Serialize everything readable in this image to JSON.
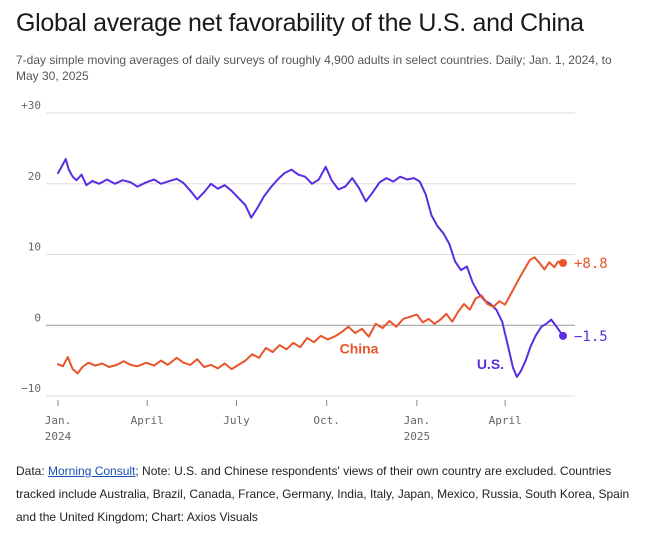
{
  "title": "Global average net favorability of the U.S. and China",
  "subtitle": "7-day simple moving averages of daily surveys of roughly 4,900 adults in select countries. Daily; Jan. 1, 2024, to May 30, 2025",
  "footer": {
    "prefix": "Data: ",
    "link_text": "Morning Consult",
    "rest": "; Note: U.S. and Chinese respondents' views of their own country are excluded. Countries tracked include Australia, Brazil, Canada, France, Germany, India, Italy, Japan, Mexico, Russia, South Korea, Spain and the United Kingdom; Chart: Axios Visuals"
  },
  "colors": {
    "us": "#5a2ee0",
    "china": "#e8552a",
    "grid": "#dddddd",
    "zero": "#999999"
  },
  "chart_data": {
    "type": "line",
    "title": "Global average net favorability of the U.S. and China",
    "xlim": [
      "2024-01-01",
      "2025-05-30"
    ],
    "ylim": [
      -10,
      30
    ],
    "yticks": [
      {
        "value": 30,
        "label": "+30"
      },
      {
        "value": 20,
        "label": "20"
      },
      {
        "value": 10,
        "label": "10"
      },
      {
        "value": 0,
        "label": "0"
      },
      {
        "value": -10,
        "label": "−10"
      }
    ],
    "xticks": [
      {
        "date": "2024-01-01",
        "label": "Jan.",
        "sublabel": "2024"
      },
      {
        "date": "2024-04-01",
        "label": "April",
        "sublabel": ""
      },
      {
        "date": "2024-07-01",
        "label": "July",
        "sublabel": ""
      },
      {
        "date": "2024-10-01",
        "label": "Oct.",
        "sublabel": ""
      },
      {
        "date": "2025-01-01",
        "label": "Jan.",
        "sublabel": "2025"
      },
      {
        "date": "2025-04-01",
        "label": "April",
        "sublabel": ""
      }
    ],
    "grid": true,
    "series": [
      {
        "name": "U.S.",
        "color": "#5a2ee0",
        "end_label": "−1.5",
        "points": [
          [
            "2024-01-01",
            21.5
          ],
          [
            "2024-01-05",
            22.5
          ],
          [
            "2024-01-09",
            23.5
          ],
          [
            "2024-01-12",
            22.0
          ],
          [
            "2024-01-16",
            21.0
          ],
          [
            "2024-01-20",
            20.5
          ],
          [
            "2024-01-25",
            21.3
          ],
          [
            "2024-01-30",
            19.8
          ],
          [
            "2024-02-05",
            20.4
          ],
          [
            "2024-02-12",
            20.0
          ],
          [
            "2024-02-20",
            20.6
          ],
          [
            "2024-02-28",
            20.0
          ],
          [
            "2024-03-07",
            20.5
          ],
          [
            "2024-03-15",
            20.2
          ],
          [
            "2024-03-22",
            19.6
          ],
          [
            "2024-03-31",
            20.2
          ],
          [
            "2024-04-08",
            20.6
          ],
          [
            "2024-04-15",
            20.0
          ],
          [
            "2024-04-22",
            20.3
          ],
          [
            "2024-05-01",
            20.7
          ],
          [
            "2024-05-08",
            20.1
          ],
          [
            "2024-05-15",
            19.0
          ],
          [
            "2024-05-22",
            17.8
          ],
          [
            "2024-05-29",
            18.8
          ],
          [
            "2024-06-05",
            20.0
          ],
          [
            "2024-06-12",
            19.3
          ],
          [
            "2024-06-19",
            19.8
          ],
          [
            "2024-06-26",
            19.0
          ],
          [
            "2024-07-03",
            18.0
          ],
          [
            "2024-07-10",
            17.0
          ],
          [
            "2024-07-16",
            15.2
          ],
          [
            "2024-07-22",
            16.5
          ],
          [
            "2024-07-29",
            18.2
          ],
          [
            "2024-08-05",
            19.5
          ],
          [
            "2024-08-12",
            20.6
          ],
          [
            "2024-08-19",
            21.5
          ],
          [
            "2024-08-26",
            22.0
          ],
          [
            "2024-09-02",
            21.3
          ],
          [
            "2024-09-09",
            21.0
          ],
          [
            "2024-09-16",
            20.0
          ],
          [
            "2024-09-23",
            20.6
          ],
          [
            "2024-09-30",
            22.4
          ],
          [
            "2024-10-06",
            20.5
          ],
          [
            "2024-10-13",
            19.2
          ],
          [
            "2024-10-20",
            19.6
          ],
          [
            "2024-10-27",
            20.8
          ],
          [
            "2024-11-03",
            19.4
          ],
          [
            "2024-11-10",
            17.5
          ],
          [
            "2024-11-17",
            18.8
          ],
          [
            "2024-11-24",
            20.2
          ],
          [
            "2024-12-01",
            20.8
          ],
          [
            "2024-12-08",
            20.3
          ],
          [
            "2024-12-15",
            21.0
          ],
          [
            "2024-12-22",
            20.6
          ],
          [
            "2024-12-29",
            20.8
          ],
          [
            "2025-01-04",
            20.3
          ],
          [
            "2025-01-10",
            18.5
          ],
          [
            "2025-01-16",
            15.5
          ],
          [
            "2025-01-22",
            14.0
          ],
          [
            "2025-01-28",
            13.0
          ],
          [
            "2025-02-03",
            11.5
          ],
          [
            "2025-02-09",
            9.0
          ],
          [
            "2025-02-15",
            7.8
          ],
          [
            "2025-02-21",
            8.3
          ],
          [
            "2025-02-27",
            6.0
          ],
          [
            "2025-03-05",
            4.5
          ],
          [
            "2025-03-11",
            3.5
          ],
          [
            "2025-03-17",
            3.0
          ],
          [
            "2025-03-23",
            2.2
          ],
          [
            "2025-03-29",
            0.5
          ],
          [
            "2025-04-04",
            -3.0
          ],
          [
            "2025-04-09",
            -6.0
          ],
          [
            "2025-04-13",
            -7.3
          ],
          [
            "2025-04-17",
            -6.5
          ],
          [
            "2025-04-22",
            -5.0
          ],
          [
            "2025-04-27",
            -3.0
          ],
          [
            "2025-05-02",
            -1.5
          ],
          [
            "2025-05-08",
            -0.2
          ],
          [
            "2025-05-13",
            0.2
          ],
          [
            "2025-05-18",
            0.8
          ],
          [
            "2025-05-24",
            -0.3
          ],
          [
            "2025-05-30",
            -1.5
          ]
        ]
      },
      {
        "name": "China",
        "color": "#e8552a",
        "end_label": "+8.8",
        "points": [
          [
            "2024-01-01",
            -5.5
          ],
          [
            "2024-01-06",
            -5.8
          ],
          [
            "2024-01-11",
            -4.5
          ],
          [
            "2024-01-16",
            -6.2
          ],
          [
            "2024-01-21",
            -6.8
          ],
          [
            "2024-01-26",
            -5.9
          ],
          [
            "2024-02-01",
            -5.3
          ],
          [
            "2024-02-08",
            -5.7
          ],
          [
            "2024-02-15",
            -5.4
          ],
          [
            "2024-02-22",
            -5.9
          ],
          [
            "2024-03-01",
            -5.6
          ],
          [
            "2024-03-08",
            -5.1
          ],
          [
            "2024-03-15",
            -5.6
          ],
          [
            "2024-03-22",
            -5.8
          ],
          [
            "2024-03-31",
            -5.3
          ],
          [
            "2024-04-08",
            -5.7
          ],
          [
            "2024-04-15",
            -5.0
          ],
          [
            "2024-04-22",
            -5.6
          ],
          [
            "2024-05-01",
            -4.6
          ],
          [
            "2024-05-08",
            -5.3
          ],
          [
            "2024-05-15",
            -5.6
          ],
          [
            "2024-05-22",
            -4.8
          ],
          [
            "2024-05-29",
            -5.9
          ],
          [
            "2024-06-05",
            -5.6
          ],
          [
            "2024-06-12",
            -6.1
          ],
          [
            "2024-06-19",
            -5.4
          ],
          [
            "2024-06-26",
            -6.2
          ],
          [
            "2024-07-03",
            -5.6
          ],
          [
            "2024-07-10",
            -5.0
          ],
          [
            "2024-07-17",
            -4.1
          ],
          [
            "2024-07-24",
            -4.6
          ],
          [
            "2024-07-31",
            -3.2
          ],
          [
            "2024-08-07",
            -3.8
          ],
          [
            "2024-08-14",
            -2.8
          ],
          [
            "2024-08-21",
            -3.4
          ],
          [
            "2024-08-28",
            -2.5
          ],
          [
            "2024-09-04",
            -3.1
          ],
          [
            "2024-09-11",
            -1.8
          ],
          [
            "2024-09-18",
            -2.4
          ],
          [
            "2024-09-25",
            -1.5
          ],
          [
            "2024-10-02",
            -2.0
          ],
          [
            "2024-10-09",
            -1.6
          ],
          [
            "2024-10-16",
            -1.0
          ],
          [
            "2024-10-23",
            -0.2
          ],
          [
            "2024-10-30",
            -1.1
          ],
          [
            "2024-11-06",
            -0.5
          ],
          [
            "2024-11-13",
            -1.6
          ],
          [
            "2024-11-20",
            0.2
          ],
          [
            "2024-11-27",
            -0.4
          ],
          [
            "2024-12-04",
            0.6
          ],
          [
            "2024-12-11",
            -0.2
          ],
          [
            "2024-12-18",
            0.9
          ],
          [
            "2024-12-25",
            1.2
          ],
          [
            "2025-01-01",
            1.5
          ],
          [
            "2025-01-07",
            0.4
          ],
          [
            "2025-01-13",
            0.9
          ],
          [
            "2025-01-19",
            0.2
          ],
          [
            "2025-01-25",
            0.8
          ],
          [
            "2025-01-31",
            1.6
          ],
          [
            "2025-02-06",
            0.5
          ],
          [
            "2025-02-12",
            1.9
          ],
          [
            "2025-02-18",
            3.0
          ],
          [
            "2025-02-24",
            2.2
          ],
          [
            "2025-03-02",
            3.8
          ],
          [
            "2025-03-08",
            4.2
          ],
          [
            "2025-03-14",
            3.0
          ],
          [
            "2025-03-20",
            2.6
          ],
          [
            "2025-03-26",
            3.4
          ],
          [
            "2025-04-01",
            2.9
          ],
          [
            "2025-04-06",
            4.2
          ],
          [
            "2025-04-11",
            5.5
          ],
          [
            "2025-04-16",
            6.8
          ],
          [
            "2025-04-21",
            8.0
          ],
          [
            "2025-04-26",
            9.2
          ],
          [
            "2025-05-01",
            9.6
          ],
          [
            "2025-05-06",
            8.8
          ],
          [
            "2025-05-11",
            7.9
          ],
          [
            "2025-05-16",
            8.9
          ],
          [
            "2025-05-21",
            8.2
          ],
          [
            "2025-05-25",
            9.0
          ],
          [
            "2025-05-30",
            8.8
          ]
        ]
      }
    ],
    "annotations": [
      {
        "text": "China",
        "date": "2024-11-03",
        "value": -4.0,
        "series": "China"
      },
      {
        "text": "U.S.",
        "date": "2025-03-17",
        "value": -6.2,
        "series": "U.S."
      }
    ]
  }
}
